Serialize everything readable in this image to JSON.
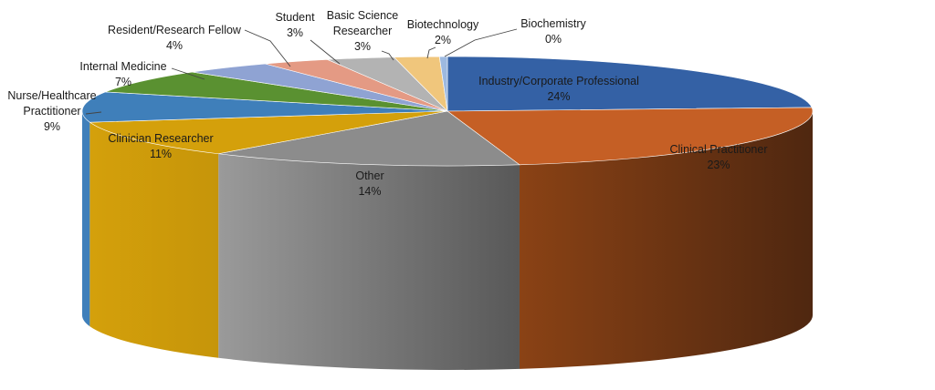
{
  "chart_data": {
    "type": "pie",
    "style": "3d",
    "legend": "none",
    "slices": [
      {
        "label": "Industry/Corporate Professional",
        "value": 24,
        "pct_label": "24%",
        "color": "#3461a5"
      },
      {
        "label": "Clinical Practitioner",
        "value": 23,
        "pct_label": "23%",
        "color": "#c55f25"
      },
      {
        "label": "Other",
        "value": 14,
        "pct_label": "14%",
        "color": "#8c8c8c"
      },
      {
        "label": "Clinician Researcher",
        "value": 11,
        "pct_label": "11%",
        "color": "#d4a00b"
      },
      {
        "label": "Nurse/Healthcare Practitioner",
        "value": 9,
        "pct_label": "9%",
        "color": "#3f7fba"
      },
      {
        "label": "Internal Medicine",
        "value": 7,
        "pct_label": "7%",
        "color": "#5a9131"
      },
      {
        "label": "Resident/Research Fellow",
        "value": 4,
        "pct_label": "4%",
        "color": "#8fa3d3"
      },
      {
        "label": "Student",
        "value": 3,
        "pct_label": "3%",
        "color": "#e49a84"
      },
      {
        "label": "Basic Science Researcher",
        "value": 3,
        "pct_label": "3%",
        "color": "#b3b3b3"
      },
      {
        "label": "Biotechnology",
        "value": 2,
        "pct_label": "2%",
        "color": "#f0c67c"
      },
      {
        "label": "Biochemistry",
        "value": 0,
        "pct_label": "0%",
        "color": "#9db9e0"
      }
    ]
  }
}
